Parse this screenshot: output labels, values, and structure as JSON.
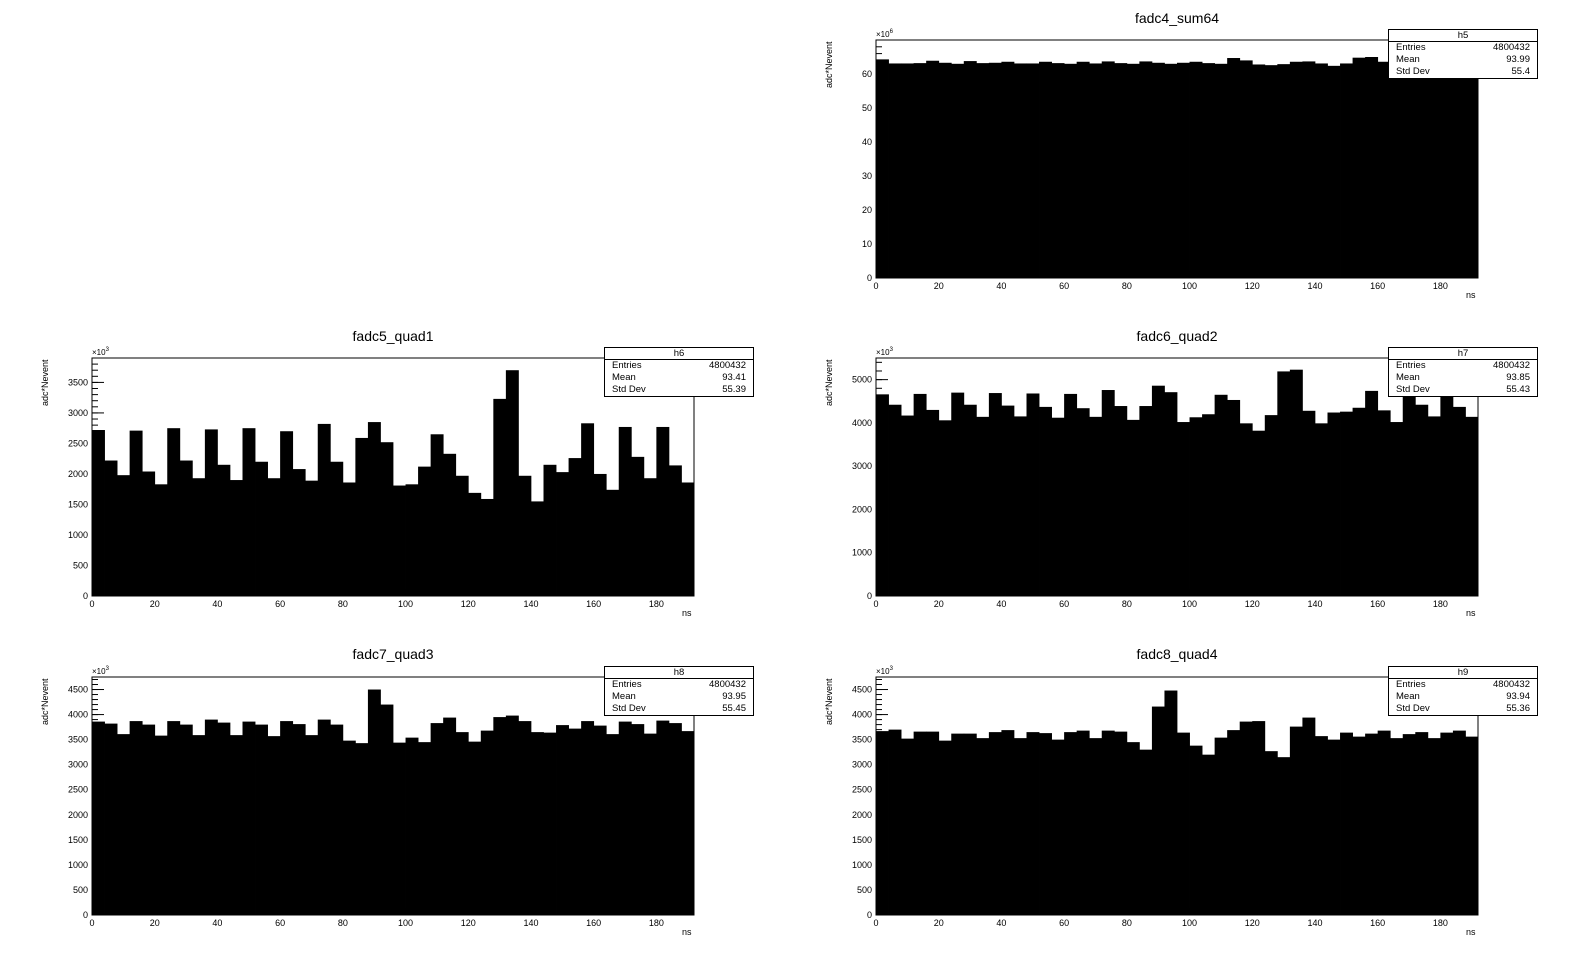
{
  "chart_data": [
    {
      "type": "bar",
      "title": "fadc4_sum64",
      "xlabel": "ns",
      "ylabel": "adc*Nevent",
      "y_exponent": "6",
      "xlim": [
        0,
        192
      ],
      "ylim": [
        0,
        70
      ],
      "xticks": [
        0,
        20,
        40,
        60,
        80,
        100,
        120,
        140,
        160,
        180
      ],
      "yticks": [
        0,
        10,
        20,
        30,
        40,
        50,
        60
      ],
      "stats": {
        "name": "h5",
        "entries": "4800432",
        "mean": "93.99",
        "std_dev": "55.4",
        "entries_label": "Entries",
        "mean_label": "Mean",
        "std_label": "Std Dev"
      },
      "values": [
        64.3,
        63.1,
        63.1,
        63.2,
        63.9,
        63.3,
        63.0,
        63.8,
        63.2,
        63.3,
        63.6,
        63.1,
        63.1,
        63.6,
        63.2,
        63.0,
        63.6,
        63.1,
        63.7,
        63.2,
        63.0,
        63.7,
        63.3,
        63.0,
        63.3,
        63.6,
        63.2,
        63.0,
        64.7,
        64.0,
        62.8,
        62.6,
        62.9,
        63.6,
        63.7,
        63.1,
        62.4,
        63.1,
        64.8,
        65.0,
        63.6,
        63.3,
        63.7,
        63.6,
        63.7,
        63.4,
        63.1,
        63.5
      ]
    },
    {
      "type": "bar",
      "title": "fadc5_quad1",
      "xlabel": "ns",
      "ylabel": "adc*Nevent",
      "y_exponent": "3",
      "xlim": [
        0,
        192
      ],
      "ylim": [
        0,
        3900
      ],
      "xticks": [
        0,
        20,
        40,
        60,
        80,
        100,
        120,
        140,
        160,
        180
      ],
      "yticks": [
        0,
        500,
        1000,
        1500,
        2000,
        2500,
        3000,
        3500
      ],
      "stats": {
        "name": "h6",
        "entries": "4800432",
        "mean": "93.41",
        "std_dev": "55.39",
        "entries_label": "Entries",
        "mean_label": "Mean",
        "std_label": "Std Dev"
      },
      "values": [
        2720,
        2220,
        1980,
        2710,
        2040,
        1830,
        2750,
        2220,
        1930,
        2730,
        2150,
        1900,
        2750,
        2200,
        1930,
        2700,
        2080,
        1890,
        2820,
        2200,
        1860,
        2590,
        2850,
        2520,
        1810,
        1830,
        2120,
        2650,
        2330,
        1970,
        1690,
        1590,
        3230,
        3700,
        1970,
        1550,
        2150,
        2030,
        2260,
        2830,
        2000,
        1740,
        2770,
        2280,
        1930,
        2770,
        2140,
        1860
      ]
    },
    {
      "type": "bar",
      "title": "fadc6_quad2",
      "xlabel": "ns",
      "ylabel": "adc*Nevent",
      "y_exponent": "3",
      "xlim": [
        0,
        192
      ],
      "ylim": [
        0,
        5500
      ],
      "xticks": [
        0,
        20,
        40,
        60,
        80,
        100,
        120,
        140,
        160,
        180
      ],
      "yticks": [
        0,
        1000,
        2000,
        3000,
        4000,
        5000
      ],
      "stats": {
        "name": "h7",
        "entries": "4800432",
        "mean": "93.85",
        "std_dev": "55.43",
        "entries_label": "Entries",
        "mean_label": "Mean",
        "std_label": "Std Dev"
      },
      "values": [
        4660,
        4420,
        4170,
        4670,
        4300,
        4060,
        4700,
        4420,
        4140,
        4690,
        4400,
        4150,
        4680,
        4370,
        4120,
        4670,
        4340,
        4140,
        4760,
        4390,
        4070,
        4390,
        4860,
        4710,
        4020,
        4130,
        4200,
        4650,
        4530,
        3990,
        3820,
        4180,
        5190,
        5230,
        4280,
        3990,
        4240,
        4260,
        4350,
        4740,
        4290,
        4020,
        4790,
        4420,
        4150,
        4630,
        4370,
        4140
      ]
    },
    {
      "type": "bar",
      "title": "fadc7_quad3",
      "xlabel": "ns",
      "ylabel": "adc*Nevent",
      "y_exponent": "3",
      "xlim": [
        0,
        192
      ],
      "ylim": [
        0,
        4750
      ],
      "xticks": [
        0,
        20,
        40,
        60,
        80,
        100,
        120,
        140,
        160,
        180
      ],
      "yticks": [
        0,
        500,
        1000,
        1500,
        2000,
        2500,
        3000,
        3500,
        4000,
        4500
      ],
      "stats": {
        "name": "h8",
        "entries": "4800432",
        "mean": "93.95",
        "std_dev": "55.45",
        "entries_label": "Entries",
        "mean_label": "Mean",
        "std_label": "Std Dev"
      },
      "values": [
        3860,
        3820,
        3610,
        3870,
        3800,
        3580,
        3870,
        3800,
        3590,
        3900,
        3840,
        3590,
        3860,
        3800,
        3570,
        3870,
        3810,
        3590,
        3900,
        3800,
        3480,
        3430,
        4500,
        4200,
        3440,
        3540,
        3450,
        3830,
        3940,
        3650,
        3460,
        3680,
        3950,
        3980,
        3870,
        3650,
        3640,
        3790,
        3720,
        3870,
        3780,
        3610,
        3860,
        3810,
        3620,
        3880,
        3830,
        3670
      ]
    },
    {
      "type": "bar",
      "title": "fadc8_quad4",
      "xlabel": "ns",
      "ylabel": "adc*Nevent",
      "y_exponent": "3",
      "xlim": [
        0,
        192
      ],
      "ylim": [
        0,
        4750
      ],
      "xticks": [
        0,
        20,
        40,
        60,
        80,
        100,
        120,
        140,
        160,
        180
      ],
      "yticks": [
        0,
        500,
        1000,
        1500,
        2000,
        2500,
        3000,
        3500,
        4000,
        4500
      ],
      "stats": {
        "name": "h9",
        "entries": "4800432",
        "mean": "93.94",
        "std_dev": "55.36",
        "entries_label": "Entries",
        "mean_label": "Mean",
        "std_label": "Std Dev"
      },
      "values": [
        3670,
        3700,
        3520,
        3660,
        3660,
        3480,
        3620,
        3620,
        3530,
        3650,
        3690,
        3530,
        3650,
        3630,
        3500,
        3650,
        3680,
        3530,
        3680,
        3660,
        3450,
        3300,
        4160,
        4480,
        3640,
        3380,
        3200,
        3540,
        3690,
        3860,
        3870,
        3270,
        3150,
        3760,
        3940,
        3570,
        3500,
        3640,
        3560,
        3620,
        3680,
        3530,
        3610,
        3650,
        3530,
        3640,
        3680,
        3560
      ]
    }
  ]
}
